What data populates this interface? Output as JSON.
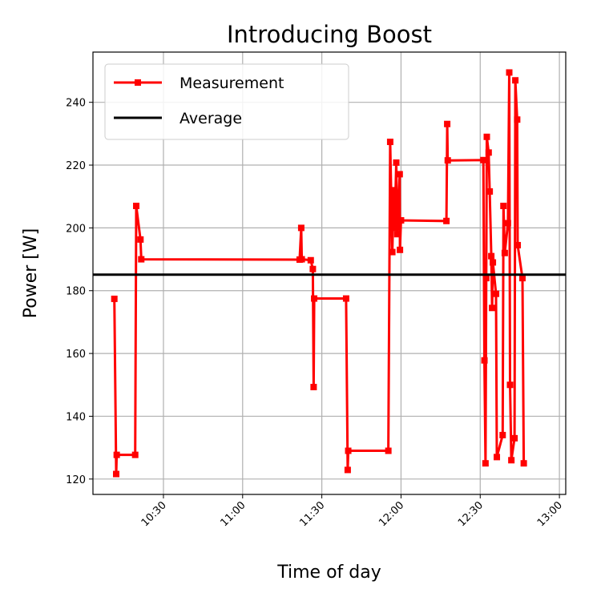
{
  "chart_data": {
    "type": "line",
    "title": "Introducing Boost",
    "xlabel": "Time of day",
    "ylabel": "Power [W]",
    "xlim": [
      "10:03:18",
      "13:02:24"
    ],
    "ylim": [
      115.1,
      256
    ],
    "x_ticks": [
      "10:30",
      "11:00",
      "11:30",
      "12:00",
      "12:30",
      "13:00"
    ],
    "y_ticks": [
      120,
      140,
      160,
      180,
      200,
      220,
      240
    ],
    "grid": true,
    "legend_position": "top-left",
    "series": [
      {
        "name": "Measurement",
        "color": "#ff0000",
        "marker": "square",
        "points": [
          [
            "10:11:24",
            177.4
          ],
          [
            "10:12:06",
            121.6
          ],
          [
            "10:12:18",
            127.7
          ],
          [
            "10:19:18",
            127.7
          ],
          [
            "10:19:42",
            207
          ],
          [
            "10:21:18",
            196.3
          ],
          [
            "10:21:36",
            190
          ],
          [
            "11:21:36",
            189.9
          ],
          [
            "11:22:12",
            200
          ],
          [
            "11:22:24",
            190
          ],
          [
            "11:25:48",
            189.7
          ],
          [
            "11:26:36",
            186.9
          ],
          [
            "11:26:54",
            149.3
          ],
          [
            "11:27:06",
            177.5
          ],
          [
            "11:39:12",
            177.5
          ],
          [
            "11:39:48",
            122.9
          ],
          [
            "11:40:00",
            129
          ],
          [
            "11:55:12",
            129
          ],
          [
            "11:55:54",
            227.4
          ],
          [
            "11:56:42",
            192.3
          ],
          [
            "11:57:12",
            212
          ],
          [
            "11:57:36",
            200
          ],
          [
            "11:58:12",
            220.8
          ],
          [
            "11:58:36",
            198
          ],
          [
            "11:59:30",
            217.1
          ],
          [
            "11:59:36",
            193
          ],
          [
            "12:00:00",
            202.4
          ],
          [
            "12:17:12",
            202.2
          ],
          [
            "12:17:30",
            233.1
          ],
          [
            "12:17:42",
            221.5
          ],
          [
            "12:31:12",
            221.6
          ],
          [
            "12:31:36",
            157.8
          ],
          [
            "12:32:00",
            125
          ],
          [
            "12:32:18",
            184
          ],
          [
            "12:32:30",
            229
          ],
          [
            "12:33:12",
            224
          ],
          [
            "12:33:36",
            211.6
          ],
          [
            "12:34:12",
            191
          ],
          [
            "12:34:30",
            174.5
          ],
          [
            "12:34:48",
            189
          ],
          [
            "12:36:00",
            179
          ],
          [
            "12:36:18",
            127
          ],
          [
            "12:38:30",
            134
          ],
          [
            "12:38:48",
            207
          ],
          [
            "12:39:18",
            192
          ],
          [
            "12:40:30",
            201.5
          ],
          [
            "12:41:00",
            249.5
          ],
          [
            "12:41:18",
            150
          ],
          [
            "12:41:48",
            126
          ],
          [
            "12:43:00",
            133
          ],
          [
            "12:43:18",
            247
          ],
          [
            "12:44:00",
            234.5
          ],
          [
            "12:44:12",
            194.5
          ],
          [
            "12:46:00",
            184
          ],
          [
            "12:46:30",
            125
          ]
        ]
      },
      {
        "name": "Average",
        "color": "#000000",
        "value": 185.1
      }
    ]
  }
}
